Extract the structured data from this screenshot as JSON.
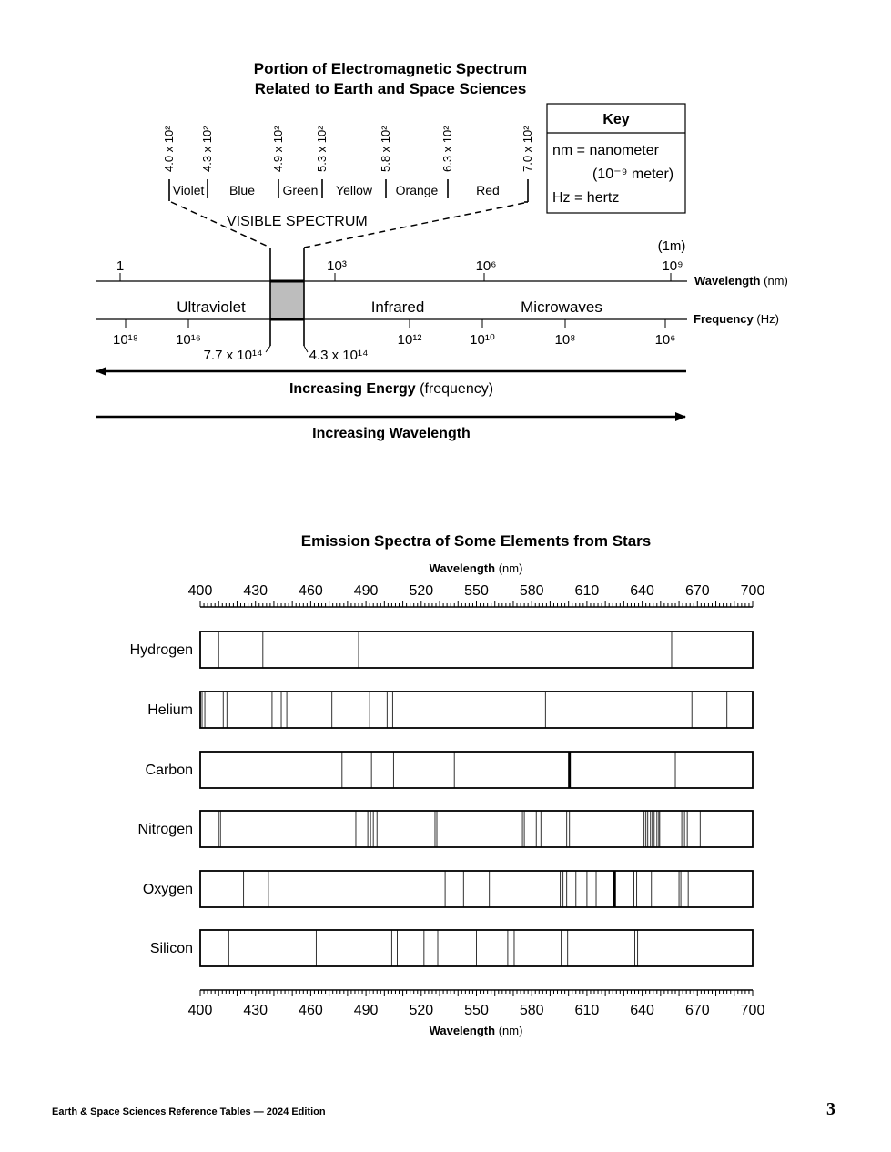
{
  "em_spectrum": {
    "title_line1": "Portion of Electromagnetic Spectrum",
    "title_line2": "Related to Earth and Space Sciences",
    "boundaries": [
      "4.0 x 10²",
      "4.3 x 10²",
      "4.9 x 10²",
      "5.3 x 10²",
      "5.8 x 10²",
      "6.3 x 10²",
      "7.0 x 10²"
    ],
    "colors": [
      "Violet",
      "Blue",
      "Green",
      "Yellow",
      "Orange",
      "Red"
    ],
    "visible_label": "VISIBLE SPECTRUM",
    "wavelength_ticks": [
      "1",
      "10³",
      "10⁶",
      "10⁹"
    ],
    "one_meter": "(1m)",
    "wavelength_label": "Wavelength",
    "wavelength_unit": "(nm)",
    "frequency_label": "Frequency",
    "frequency_unit": "(Hz)",
    "frequency_ticks": [
      "10¹⁸",
      "10¹⁶",
      "10¹²",
      "10¹⁰",
      "10⁸",
      "10⁶"
    ],
    "regions": [
      "Ultraviolet",
      "Infrared",
      "Microwaves"
    ],
    "visible_freq_high": "7.7 x 10¹⁴",
    "visible_freq_low": "4.3 x 10¹⁴",
    "energy_label": "Increasing Energy",
    "energy_sub": "(frequency)",
    "increasing_wavelength": "Increasing Wavelength",
    "visible_fill": "#bdbdbd"
  },
  "key": {
    "title": "Key",
    "line1": "nm = nanometer",
    "line2": "(10⁻⁹ meter)",
    "line3": "Hz = hertz"
  },
  "emission": {
    "title": "Emission Spectra of Some Elements from Stars",
    "axis_label": "Wavelength",
    "axis_unit": "(nm)",
    "range": [
      400,
      700
    ],
    "tick_labels": [
      "400",
      "430",
      "460",
      "490",
      "520",
      "550",
      "580",
      "610",
      "640",
      "670",
      "700"
    ],
    "elements": [
      {
        "name": "Hydrogen",
        "lines": [
          410,
          434,
          486,
          656
        ]
      },
      {
        "name": "Helium",
        "lines": [
          401,
          402.5,
          412.5,
          414.5,
          439,
          444,
          447,
          471.5,
          492,
          501.5,
          504.5,
          587.5,
          667,
          686
        ]
      },
      {
        "name": "Carbon",
        "lines": [
          477,
          493,
          505,
          538,
          658
        ],
        "thick_lines": [
          600.5
        ]
      },
      {
        "name": "Nitrogen",
        "lines": [
          410,
          411,
          484.5,
          491,
          492.5,
          494,
          496,
          527.5,
          528.5,
          575,
          576,
          582.5,
          585,
          599,
          600.5,
          641,
          642,
          643,
          644.5,
          645.5,
          646.5,
          648,
          649,
          649.5,
          661.5,
          663,
          664.5,
          671.5
        ]
      },
      {
        "name": "Oxygen",
        "lines": [
          423.5,
          437,
          533,
          543,
          557,
          595.5,
          597,
          599,
          604,
          610,
          615,
          635.5,
          637,
          645,
          660,
          661,
          665
        ],
        "thick_lines": [
          625
        ]
      },
      {
        "name": "Silicon",
        "lines": [
          415.5,
          463,
          504,
          507,
          521.5,
          529,
          550,
          567,
          570.5,
          596,
          599.5,
          636,
          637.5
        ]
      }
    ]
  },
  "footer": {
    "text": "Earth & Space Sciences Reference Tables — 2024 Edition",
    "page_number": "3"
  }
}
